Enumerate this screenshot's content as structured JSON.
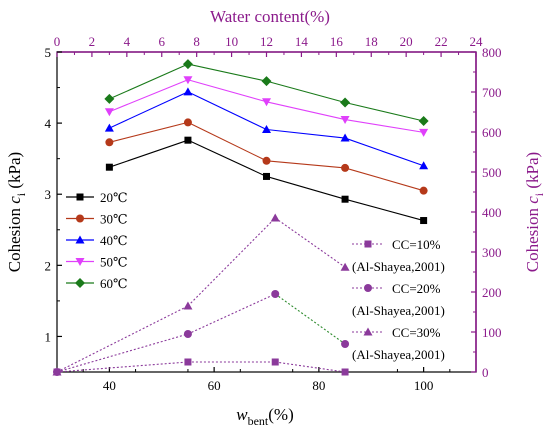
{
  "chart_data": {
    "type": "line",
    "x_bottom": {
      "label_main": "w",
      "label_sub": "bent",
      "label_tail": "(%)",
      "range": [
        30,
        110
      ],
      "ticks": [
        40,
        60,
        80,
        100
      ],
      "tick_labels": [
        "40",
        "60",
        "80",
        "100"
      ]
    },
    "x_top": {
      "label": "Water content(%)",
      "range": [
        0,
        24
      ],
      "ticks": [
        0,
        2,
        4,
        6,
        8,
        10,
        12,
        14,
        16,
        18,
        20,
        22,
        24
      ],
      "tick_labels": [
        "0",
        "2",
        "4",
        "6",
        "8",
        "10",
        "12",
        "14",
        "16",
        "18",
        "20",
        "22",
        "24"
      ],
      "color": "#8b1a8b"
    },
    "y_left": {
      "label_main": "Cohesion ",
      "label_italic": "c",
      "label_sub": "i",
      "label_tail": " (kPa)",
      "range": [
        0.5,
        5
      ],
      "ticks": [
        1,
        2,
        3,
        4,
        5
      ],
      "tick_labels": [
        "1",
        "2",
        "3",
        "4",
        "5"
      ]
    },
    "y_right": {
      "label_main": "Cohesion ",
      "label_italic": "c",
      "label_sub": "i",
      "label_tail": " (kPa)",
      "range": [
        0,
        800
      ],
      "ticks": [
        0,
        100,
        200,
        300,
        400,
        500,
        600,
        700,
        800
      ],
      "tick_labels": [
        "0",
        "100",
        "200",
        "300",
        "400",
        "500",
        "600",
        "700",
        "800"
      ],
      "color": "#8b1a8b"
    },
    "series": [
      {
        "name": "20℃",
        "axis": "left",
        "marker": "square",
        "color": "#000000",
        "dashed": false,
        "x": [
          40,
          55,
          70,
          85,
          100
        ],
        "y": [
          3.38,
          3.76,
          3.25,
          2.93,
          2.63
        ]
      },
      {
        "name": "30℃",
        "axis": "left",
        "marker": "circle",
        "color": "#b5391a",
        "dashed": false,
        "x": [
          40,
          55,
          70,
          85,
          100
        ],
        "y": [
          3.73,
          4.01,
          3.47,
          3.37,
          3.05
        ]
      },
      {
        "name": "40℃",
        "axis": "left",
        "marker": "triangle-up",
        "color": "#0000ff",
        "dashed": false,
        "x": [
          40,
          55,
          70,
          85,
          100
        ],
        "y": [
          3.93,
          4.44,
          3.91,
          3.79,
          3.4
        ]
      },
      {
        "name": "50℃",
        "axis": "left",
        "marker": "triangle-down",
        "color": "#e040fb",
        "dashed": false,
        "x": [
          40,
          55,
          70,
          85,
          100
        ],
        "y": [
          4.16,
          4.61,
          4.3,
          4.05,
          3.87
        ]
      },
      {
        "name": "60℃",
        "axis": "left",
        "marker": "diamond",
        "color": "#1a7a1a",
        "dashed": false,
        "x": [
          40,
          55,
          70,
          85,
          100
        ],
        "y": [
          4.34,
          4.83,
          4.59,
          4.29,
          4.03
        ]
      },
      {
        "name": "CC=10%",
        "name2": "(Al-Shayea,2001)",
        "axis": "top-right",
        "marker": "square",
        "color": "#8b3a9b",
        "dashed": true,
        "x": [
          0,
          7.5,
          12.5,
          16.5
        ],
        "y": [
          0,
          25,
          25,
          0
        ],
        "seg_colors": [
          "#8b3a9b",
          "#8b3a9b",
          "#8b3a9b"
        ]
      },
      {
        "name": "CC=20%",
        "name2": "(Al-Shayea,2001)",
        "axis": "top-right",
        "marker": "circle",
        "color": "#8b3a9b",
        "dashed": true,
        "x": [
          0,
          7.5,
          12.5,
          16.5
        ],
        "y": [
          0,
          95,
          195,
          70
        ],
        "seg_colors": [
          "#8b3a9b",
          "#8b3a9b",
          "#2e8b2e"
        ]
      },
      {
        "name": "CC=30%",
        "name2": "(Al-Shayea,2001)",
        "axis": "top-right",
        "marker": "triangle-up",
        "color": "#8b3a9b",
        "dashed": true,
        "x": [
          0,
          7.5,
          12.5,
          16.5
        ],
        "y": [
          0,
          165,
          385,
          262
        ],
        "seg_colors": [
          "#8b3a9b",
          "#8b3a9b",
          "#8b3a9b"
        ]
      }
    ]
  }
}
